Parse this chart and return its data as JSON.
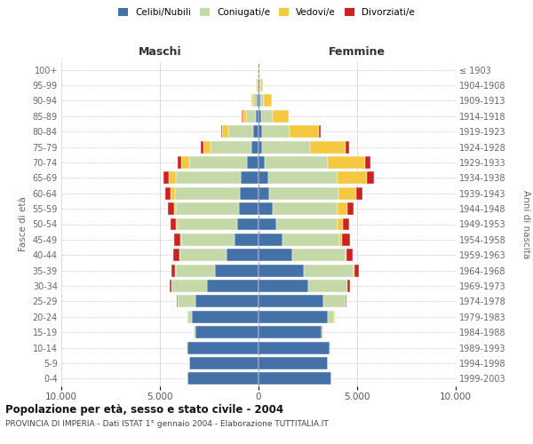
{
  "age_groups": [
    "0-4",
    "5-9",
    "10-14",
    "15-19",
    "20-24",
    "25-29",
    "30-34",
    "35-39",
    "40-44",
    "45-49",
    "50-54",
    "55-59",
    "60-64",
    "65-69",
    "70-74",
    "75-79",
    "80-84",
    "85-89",
    "90-94",
    "95-99",
    "100+"
  ],
  "birth_years": [
    "1999-2003",
    "1994-1998",
    "1989-1993",
    "1984-1988",
    "1979-1983",
    "1974-1978",
    "1969-1973",
    "1964-1968",
    "1959-1963",
    "1954-1958",
    "1949-1953",
    "1944-1948",
    "1939-1943",
    "1934-1938",
    "1929-1933",
    "1924-1928",
    "1919-1923",
    "1914-1918",
    "1909-1913",
    "1904-1908",
    "≤ 1903"
  ],
  "males": {
    "celibi": [
      3600,
      3500,
      3600,
      3200,
      3400,
      3200,
      2600,
      2200,
      1600,
      1200,
      1100,
      1000,
      950,
      900,
      600,
      350,
      250,
      120,
      80,
      50,
      20
    ],
    "coniugati": [
      0,
      0,
      50,
      80,
      200,
      900,
      1800,
      2000,
      2400,
      2700,
      3000,
      3200,
      3300,
      3300,
      2900,
      2100,
      1300,
      500,
      180,
      60,
      10
    ],
    "vedovi": [
      0,
      0,
      0,
      0,
      0,
      10,
      10,
      20,
      30,
      50,
      80,
      100,
      200,
      350,
      400,
      350,
      300,
      200,
      100,
      30,
      5
    ],
    "divorziati": [
      0,
      0,
      0,
      0,
      10,
      30,
      80,
      200,
      280,
      350,
      260,
      280,
      300,
      280,
      200,
      150,
      40,
      30,
      10,
      5,
      2
    ]
  },
  "females": {
    "nubili": [
      3700,
      3500,
      3600,
      3200,
      3500,
      3300,
      2500,
      2300,
      1700,
      1200,
      900,
      700,
      550,
      500,
      300,
      200,
      180,
      120,
      80,
      50,
      20
    ],
    "coniugate": [
      0,
      0,
      50,
      100,
      350,
      1100,
      2000,
      2500,
      2700,
      2900,
      3100,
      3300,
      3500,
      3500,
      3200,
      2400,
      1400,
      600,
      200,
      70,
      10
    ],
    "vedove": [
      0,
      0,
      0,
      0,
      5,
      10,
      20,
      50,
      80,
      150,
      300,
      500,
      900,
      1500,
      1900,
      1800,
      1500,
      800,
      400,
      100,
      5
    ],
    "divorziate": [
      0,
      0,
      0,
      0,
      10,
      40,
      100,
      250,
      300,
      400,
      300,
      300,
      320,
      350,
      280,
      200,
      60,
      30,
      10,
      5,
      2
    ]
  },
  "colors": {
    "celibi": "#4472a8",
    "coniugati": "#c5d9a8",
    "vedovi": "#f5c842",
    "divorziati": "#cc2222"
  },
  "title": "Popolazione per età, sesso e stato civile - 2004",
  "subtitle": "PROVINCIA DI IMPERIA - Dati ISTAT 1° gennaio 2004 - Elaborazione TUTTITALIA.IT",
  "xlabel_left": "Maschi",
  "xlabel_right": "Femmine",
  "ylabel_left": "Fasce di età",
  "ylabel_right": "Anni di nascita",
  "xlim": 10000,
  "xtick_labels": [
    "10.000",
    "5.000",
    "0",
    "5.000",
    "10.000"
  ],
  "legend_labels": [
    "Celibi/Nubili",
    "Coniugati/e",
    "Vedovi/e",
    "Divorziati/e"
  ]
}
